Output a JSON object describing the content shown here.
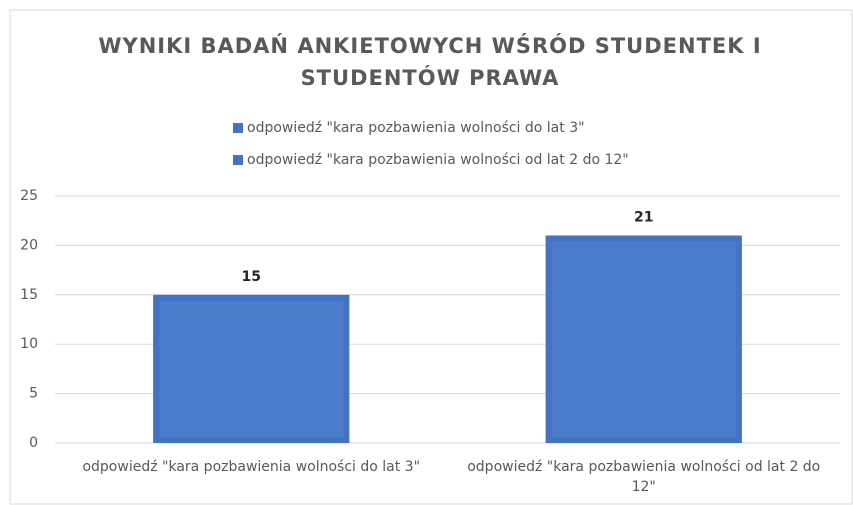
{
  "chart_data": {
    "type": "bar",
    "title": "WYNIKI BADAŃ ANKIETOWYCH WŚRÓD STUDENTEK I STUDENTÓW PRAWA",
    "categories": [
      "odpowiedź \"kara pozbawienia wolności do lat 3\"",
      "odpowiedź \"kara pozbawienia wolności od lat 2 do 12\""
    ],
    "series": [
      {
        "name": "odpowiedź \"kara pozbawienia wolności do lat 3\"",
        "color": "#4472c4",
        "values": [
          15,
          null
        ]
      },
      {
        "name": "odpowiedź \"kara pozbawienia wolności od lat 2 do 12\"",
        "color": "#4472c4",
        "values": [
          null,
          21
        ]
      }
    ],
    "ylim": [
      0,
      25
    ],
    "yticks": [
      0,
      5,
      10,
      15,
      20,
      25
    ],
    "grid": true,
    "legend": "top"
  }
}
